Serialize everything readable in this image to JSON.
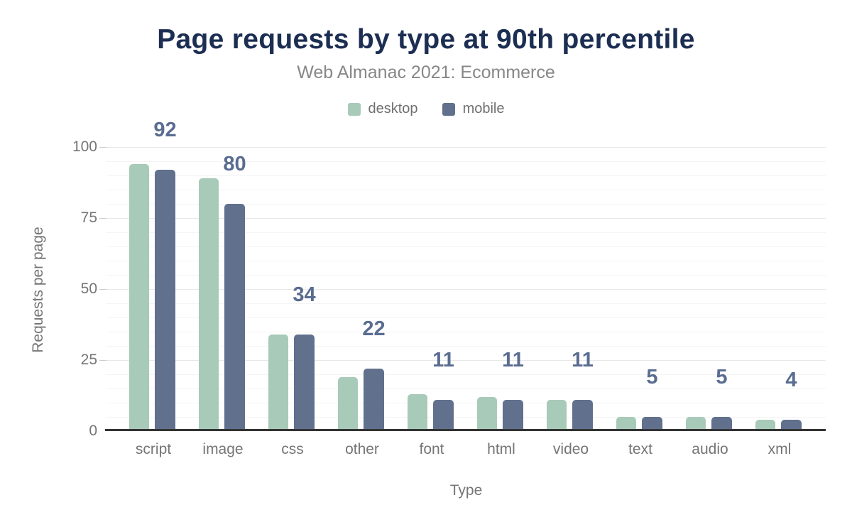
{
  "chart_data": {
    "type": "bar",
    "title": "Page requests by type at 90th percentile",
    "subtitle": "Web Almanac 2021: Ecommerce",
    "xlabel": "Type",
    "ylabel": "Requests per page",
    "categories": [
      "script",
      "image",
      "css",
      "other",
      "font",
      "html",
      "video",
      "text",
      "audio",
      "xml"
    ],
    "series": [
      {
        "name": "desktop",
        "color": "#a8cab8",
        "values": [
          94,
          89,
          34,
          19,
          13,
          12,
          11,
          5,
          5,
          4
        ]
      },
      {
        "name": "mobile",
        "color": "#61708d",
        "values": [
          92,
          80,
          34,
          22,
          11,
          11,
          11,
          5,
          5,
          4
        ]
      }
    ],
    "bar_labels": {
      "source_series": "mobile",
      "values": [
        "92",
        "80",
        "34",
        "22",
        "11",
        "11",
        "11",
        "5",
        "5",
        "4"
      ]
    },
    "y_ticks": [
      "0",
      "25",
      "50",
      "75",
      "100"
    ],
    "ylim": [
      0,
      100
    ],
    "grid": {
      "minor_step": 5,
      "major_step": 25
    },
    "legend_position": "top",
    "colors": {
      "title": "#1c2e52",
      "subtitle": "#878787",
      "axis_text": "#757575",
      "legend_text": "#6f6f6f",
      "value_label": "#5a6c90",
      "axis_line": "#333333",
      "grid_major": "#e8e8e8",
      "grid_minor": "#f4f4f4",
      "background": "#ffffff"
    }
  }
}
